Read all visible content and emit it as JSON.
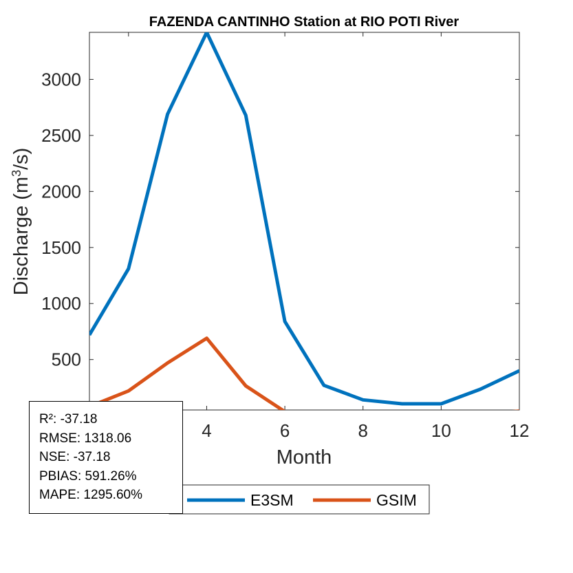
{
  "chart_data": {
    "type": "line",
    "title": "FAZENDA CANTINHO  Station at  RIO POTI  River",
    "xlabel": "Month",
    "ylabel": "Discharge (m",
    "ylabel_sup": "3",
    "ylabel_end": "/s)",
    "xlim": [
      1,
      12
    ],
    "ylim": [
      50,
      3420
    ],
    "xticks": [
      2,
      4,
      6,
      8,
      10,
      12
    ],
    "yticks": [
      500,
      1000,
      1500,
      2000,
      2500,
      3000
    ],
    "grid": false,
    "legend_position": "bottom",
    "x": [
      1,
      2,
      3,
      4,
      5,
      6,
      7,
      8,
      9,
      10,
      11,
      12
    ],
    "series": [
      {
        "name": "E3SM",
        "color": "#0072BD",
        "values": [
          720,
          1310,
          2690,
          3420,
          2680,
          840,
          270,
          140,
          105,
          105,
          235,
          400
        ]
      },
      {
        "name": "GSIM",
        "color": "#D95319",
        "values": [
          80,
          220,
          470,
          690,
          265,
          35,
          18,
          10,
          6,
          6,
          10,
          40
        ]
      }
    ],
    "stats": [
      "R²: -37.18",
      "RMSE: 1318.06",
      "NSE: -37.18",
      "PBIAS: 591.26%",
      "MAPE: 1295.60%"
    ]
  }
}
